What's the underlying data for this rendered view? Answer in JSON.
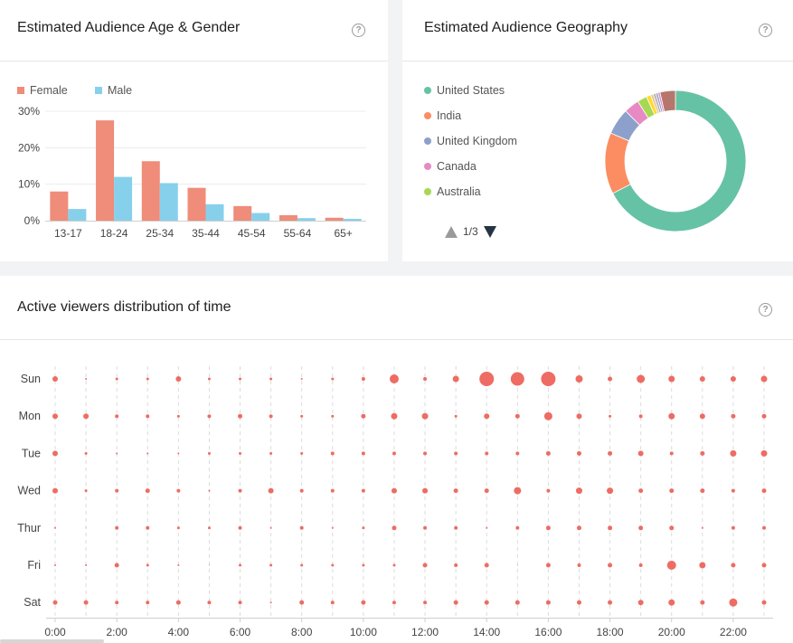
{
  "age_panel": {
    "title": "Estimated Audience Age & Gender",
    "help": "?"
  },
  "geo_panel": {
    "title": "Estimated Audience Geography",
    "help": "?",
    "pager": "1/3",
    "legend": [
      {
        "label": "United States",
        "color": "#66c2a5"
      },
      {
        "label": "India",
        "color": "#fc8d62"
      },
      {
        "label": "United Kingdom",
        "color": "#8da0cb"
      },
      {
        "label": "Canada",
        "color": "#e78ac3"
      },
      {
        "label": "Australia",
        "color": "#a6d854"
      }
    ]
  },
  "time_panel": {
    "title": "Active viewers distribution of time",
    "help": "?"
  },
  "chart_data": [
    {
      "type": "bar",
      "categories": [
        "13-17",
        "18-24",
        "25-34",
        "35-44",
        "45-54",
        "55-64",
        "65+"
      ],
      "series": [
        {
          "name": "Female",
          "color": "#ef8c7a",
          "values": [
            8,
            27.5,
            16.3,
            9,
            4,
            1.5,
            0.8
          ]
        },
        {
          "name": "Male",
          "color": "#87d0ec",
          "values": [
            3.2,
            12,
            10.3,
            4.5,
            2.1,
            0.7,
            0.5
          ]
        }
      ],
      "ylim": [
        0,
        30
      ],
      "yticks": [
        "0%",
        "10%",
        "20%",
        "30%"
      ],
      "legend_position": "top-left",
      "grid": true
    },
    {
      "type": "pie",
      "donut": true,
      "slices": [
        {
          "value": 67,
          "color": "#66c2a5"
        },
        {
          "value": 14,
          "color": "#fc8d62"
        },
        {
          "value": 6,
          "color": "#8da0cb"
        },
        {
          "value": 3.5,
          "color": "#e78ac3"
        },
        {
          "value": 2.2,
          "color": "#a6d854"
        },
        {
          "value": 1,
          "color": "#ffd92f"
        },
        {
          "value": 0.6,
          "color": "#e5c494"
        },
        {
          "value": 0.6,
          "color": "#b3b3b3"
        },
        {
          "value": 0.5,
          "color": "#8da0cb"
        },
        {
          "value": 0.5,
          "color": "#e78ac3"
        },
        {
          "value": 3.5,
          "color": "#b5776b"
        }
      ]
    },
    {
      "type": "scatter",
      "title": "Active viewers distribution of time",
      "days": [
        "Sun",
        "Mon",
        "Tue",
        "Wed",
        "Thur",
        "Fri",
        "Sat"
      ],
      "x_ticks": [
        "0:00",
        "2:00",
        "4:00",
        "6:00",
        "8:00",
        "10:00",
        "12:00",
        "14:00",
        "16:00",
        "18:00",
        "20:00",
        "22:00"
      ],
      "x_range": [
        0,
        23
      ],
      "color": "#ee6c63",
      "intensity": [
        [
          3,
          1,
          1.5,
          1.5,
          3,
          1.5,
          1.5,
          1.5,
          1,
          1.5,
          2,
          5,
          2,
          3.5,
          8,
          7.5,
          8,
          4,
          2.5,
          4.5,
          3.5,
          3,
          3,
          3.5
        ],
        [
          3,
          3,
          2,
          2,
          1.5,
          2,
          2.5,
          2,
          1.5,
          1.5,
          2.5,
          3.5,
          3.5,
          1.5,
          3,
          2.5,
          4.5,
          3,
          1.5,
          2,
          3.5,
          3,
          2.5,
          2.5
        ],
        [
          3,
          1.5,
          1,
          1,
          1,
          1.5,
          1.5,
          1.5,
          1.5,
          2,
          2,
          2,
          2,
          2,
          2,
          2,
          2.5,
          2.5,
          2.5,
          3,
          2,
          2.5,
          3.5,
          3.5
        ],
        [
          3,
          1.5,
          2,
          2.5,
          2,
          1,
          2,
          3,
          2,
          2,
          2,
          3,
          3,
          2.5,
          2.5,
          4,
          2,
          3.5,
          3.5,
          2.5,
          2.5,
          2.5,
          2,
          2.5
        ],
        [
          1,
          0.5,
          2,
          2,
          1.5,
          1.5,
          2,
          1,
          2,
          1,
          1.5,
          2.5,
          2,
          2,
          1,
          2,
          2.5,
          2.5,
          2.5,
          2.5,
          2.5,
          1,
          2,
          2
        ],
        [
          1,
          1,
          2.5,
          1.5,
          1,
          0.5,
          1.5,
          1.5,
          1.5,
          1.5,
          1.5,
          1.5,
          2.5,
          2,
          2.5,
          0.5,
          2.5,
          2,
          2.5,
          2,
          5,
          3.5,
          2.5,
          2.5
        ],
        [
          2.5,
          2.5,
          2,
          2,
          2.5,
          2,
          2,
          1,
          2.5,
          2,
          2.5,
          2,
          2,
          2.5,
          2.5,
          2.5,
          2.5,
          2.5,
          2.5,
          3,
          3.5,
          2.5,
          4.5,
          2.5
        ]
      ]
    }
  ]
}
